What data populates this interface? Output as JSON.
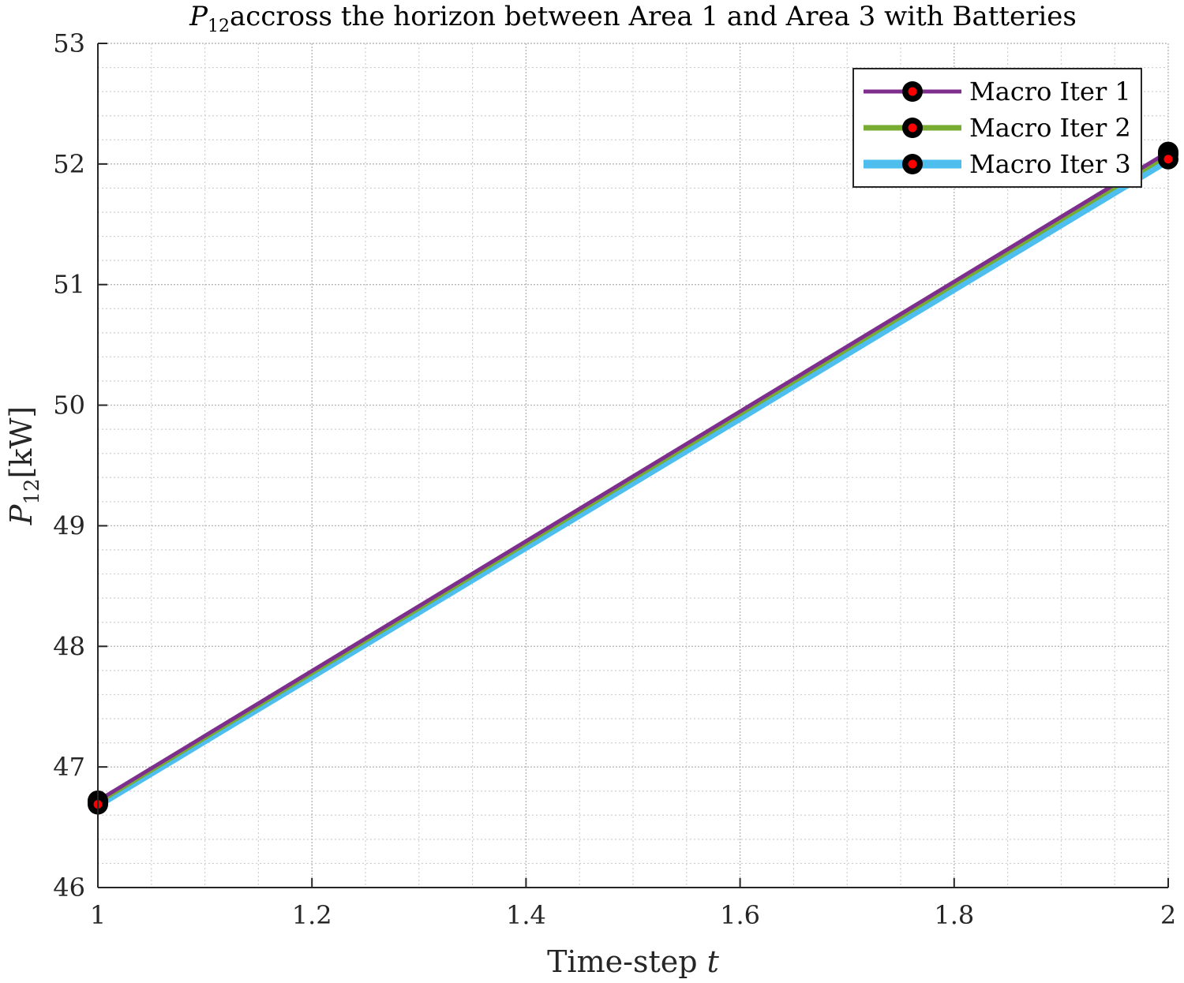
{
  "chart_data": {
    "type": "line",
    "title": {
      "symbol": "P",
      "subscript": "12",
      "text": "accross the horizon between Area 1 and Area 3 with Batteries"
    },
    "xlabel": {
      "text": "Time-step",
      "variable": "t"
    },
    "ylabel": {
      "symbol": "P",
      "subscript": "12",
      "unit": "[kW]"
    },
    "xlim": [
      1,
      2
    ],
    "ylim": [
      46,
      53
    ],
    "xticks": [
      1,
      1.2,
      1.4,
      1.6,
      1.8,
      2
    ],
    "xtick_labels": [
      "1",
      "1.2",
      "1.4",
      "1.6",
      "1.8",
      "2"
    ],
    "yticks": [
      46,
      47,
      48,
      49,
      50,
      51,
      52,
      53
    ],
    "ytick_labels": [
      "46",
      "47",
      "48",
      "49",
      "50",
      "51",
      "52",
      "53"
    ],
    "grid": true,
    "minor_grid": true,
    "legend_position": "top-right",
    "marker": {
      "shape": "circle",
      "edge_color": "#000000",
      "face_color": "#ff0000"
    },
    "series": [
      {
        "name": "Macro Iter 1",
        "color": "#7e2f8e",
        "x": [
          1,
          2
        ],
        "y": [
          46.72,
          52.1
        ]
      },
      {
        "name": "Macro Iter 2",
        "color": "#77ac30",
        "x": [
          1,
          2
        ],
        "y": [
          46.71,
          52.08
        ]
      },
      {
        "name": "Macro Iter 3",
        "color": "#4dbeee",
        "x": [
          1,
          2
        ],
        "y": [
          46.69,
          52.04
        ]
      }
    ]
  }
}
